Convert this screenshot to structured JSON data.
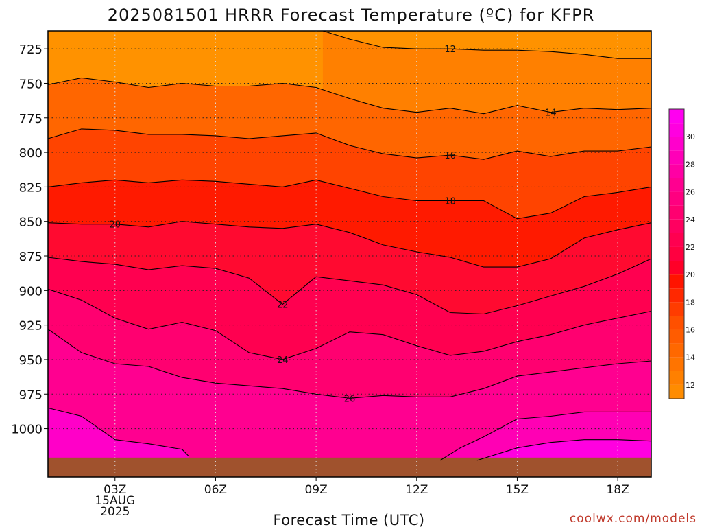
{
  "chart_data": {
    "type": "heatmap",
    "title": "2025081501 HRRR Forecast Temperature (ºC) for KFPR",
    "xlabel": "Forecast Time (UTC)",
    "ylabel": "",
    "credit": "coolwx.com/models",
    "x_ticks": [
      {
        "hour": 3,
        "lines": [
          "03Z",
          "15AUG",
          "2025"
        ]
      },
      {
        "hour": 6,
        "lines": [
          "06Z"
        ]
      },
      {
        "hour": 9,
        "lines": [
          "09Z"
        ]
      },
      {
        "hour": 12,
        "lines": [
          "12Z"
        ]
      },
      {
        "hour": 15,
        "lines": [
          "15Z"
        ]
      },
      {
        "hour": 18,
        "lines": [
          "18Z"
        ]
      }
    ],
    "xlim": [
      1,
      19
    ],
    "y_ticks": [
      725,
      750,
      775,
      800,
      825,
      850,
      875,
      900,
      925,
      950,
      975,
      1000
    ],
    "ylim": [
      1035,
      712
    ],
    "ground_pressure": 1021,
    "contours": [
      {
        "level": 12,
        "label_at": 13,
        "pts": [
          [
            9.2,
            712
          ],
          [
            10,
            718
          ],
          [
            11,
            724
          ],
          [
            12,
            725
          ],
          [
            13,
            725
          ],
          [
            14,
            726
          ],
          [
            15,
            726
          ],
          [
            16,
            727
          ],
          [
            17,
            729
          ],
          [
            18,
            732
          ],
          [
            19,
            732
          ]
        ]
      },
      {
        "level": 14,
        "label_at": 16,
        "pts": [
          [
            1,
            751
          ],
          [
            2,
            746
          ],
          [
            3,
            749
          ],
          [
            4,
            753
          ],
          [
            5,
            750
          ],
          [
            6,
            752
          ],
          [
            7,
            752
          ],
          [
            8,
            750
          ],
          [
            9,
            753
          ],
          [
            10,
            761
          ],
          [
            11,
            768
          ],
          [
            12,
            771
          ],
          [
            13,
            768
          ],
          [
            14,
            772
          ],
          [
            15,
            766
          ],
          [
            16,
            771
          ],
          [
            17,
            768
          ],
          [
            18,
            769
          ],
          [
            19,
            768
          ]
        ]
      },
      {
        "level": 16,
        "label_at": 13,
        "pts": [
          [
            1,
            790
          ],
          [
            2,
            783
          ],
          [
            3,
            784
          ],
          [
            4,
            787
          ],
          [
            5,
            787
          ],
          [
            6,
            788
          ],
          [
            7,
            790
          ],
          [
            8,
            788
          ],
          [
            9,
            786
          ],
          [
            10,
            795
          ],
          [
            11,
            801
          ],
          [
            12,
            804
          ],
          [
            13,
            802
          ],
          [
            14,
            805
          ],
          [
            15,
            799
          ],
          [
            16,
            803
          ],
          [
            17,
            799
          ],
          [
            18,
            799
          ],
          [
            19,
            796
          ]
        ]
      },
      {
        "level": 18,
        "label_at": 13,
        "pts": [
          [
            1,
            825
          ],
          [
            2,
            822
          ],
          [
            3,
            820
          ],
          [
            4,
            822
          ],
          [
            5,
            820
          ],
          [
            6,
            821
          ],
          [
            7,
            823
          ],
          [
            8,
            825
          ],
          [
            9,
            820
          ],
          [
            10,
            826
          ],
          [
            11,
            832
          ],
          [
            12,
            835
          ],
          [
            13,
            835
          ],
          [
            14,
            835
          ],
          [
            15,
            848
          ],
          [
            16,
            844
          ],
          [
            17,
            832
          ],
          [
            18,
            829
          ],
          [
            19,
            825
          ]
        ]
      },
      {
        "level": 20,
        "label_at": 3,
        "pts": [
          [
            1,
            851
          ],
          [
            2,
            852
          ],
          [
            3,
            852
          ],
          [
            4,
            854
          ],
          [
            5,
            850
          ],
          [
            6,
            852
          ],
          [
            7,
            854
          ],
          [
            8,
            855
          ],
          [
            9,
            852
          ],
          [
            10,
            858
          ],
          [
            11,
            867
          ],
          [
            12,
            872
          ],
          [
            13,
            876
          ],
          [
            14,
            883
          ],
          [
            15,
            883
          ],
          [
            16,
            877
          ],
          [
            17,
            862
          ],
          [
            18,
            856
          ],
          [
            19,
            851
          ]
        ]
      },
      {
        "level": 22,
        "label_at": 8,
        "pts": [
          [
            1,
            876
          ],
          [
            2,
            879
          ],
          [
            3,
            881
          ],
          [
            4,
            885
          ],
          [
            5,
            882
          ],
          [
            6,
            884
          ],
          [
            7,
            891
          ],
          [
            8,
            910
          ],
          [
            9,
            890
          ],
          [
            10,
            893
          ],
          [
            11,
            896
          ],
          [
            12,
            903
          ],
          [
            13,
            916
          ],
          [
            14,
            917
          ],
          [
            15,
            911
          ],
          [
            16,
            904
          ],
          [
            17,
            897
          ],
          [
            18,
            888
          ],
          [
            19,
            877
          ]
        ]
      },
      {
        "level": 24,
        "label_at": 8,
        "pts": [
          [
            1,
            899
          ],
          [
            2,
            907
          ],
          [
            3,
            920
          ],
          [
            4,
            928
          ],
          [
            5,
            923
          ],
          [
            6,
            929
          ],
          [
            7,
            945
          ],
          [
            8,
            950
          ],
          [
            9,
            942
          ],
          [
            10,
            930
          ],
          [
            11,
            932
          ],
          [
            12,
            940
          ],
          [
            13,
            947
          ],
          [
            14,
            944
          ],
          [
            15,
            937
          ],
          [
            16,
            932
          ],
          [
            17,
            925
          ],
          [
            18,
            920
          ],
          [
            19,
            915
          ]
        ]
      },
      {
        "level": 26,
        "label_at": 10,
        "pts": [
          [
            1,
            928
          ],
          [
            2,
            945
          ],
          [
            3,
            953
          ],
          [
            4,
            955
          ],
          [
            5,
            963
          ],
          [
            6,
            967
          ],
          [
            7,
            969
          ],
          [
            8,
            971
          ],
          [
            9,
            975
          ],
          [
            10,
            978
          ],
          [
            11,
            976
          ],
          [
            12,
            977
          ],
          [
            13,
            977
          ],
          [
            14,
            971
          ],
          [
            15,
            962
          ],
          [
            16,
            959
          ],
          [
            17,
            956
          ],
          [
            18,
            953
          ],
          [
            19,
            951
          ]
        ]
      },
      {
        "level": 28,
        "label_at": null,
        "pts": [
          [
            1,
            985
          ],
          [
            2,
            991
          ],
          [
            3,
            1008
          ],
          [
            4,
            1011
          ],
          [
            5,
            1015
          ],
          [
            5.2,
            1020
          ]
        ]
      },
      {
        "level": 28,
        "label_at": null,
        "pts": [
          [
            12.7,
            1023
          ],
          [
            13.3,
            1014
          ],
          [
            14,
            1006
          ],
          [
            15,
            993
          ],
          [
            16,
            991
          ],
          [
            17,
            988
          ],
          [
            18,
            988
          ],
          [
            19,
            988
          ]
        ]
      },
      {
        "level": 30,
        "label_at": null,
        "pts": [
          [
            13.8,
            1023
          ],
          [
            15,
            1014
          ],
          [
            16,
            1010
          ],
          [
            17,
            1008
          ],
          [
            18,
            1008
          ],
          [
            19,
            1009
          ]
        ]
      }
    ],
    "colorbar": {
      "levels": [
        11,
        12,
        13,
        14,
        15,
        16,
        17,
        18,
        19,
        20,
        21,
        22,
        23,
        24,
        25,
        26,
        27,
        28,
        29,
        30,
        31,
        32
      ],
      "tick_labels": [
        12,
        14,
        16,
        18,
        20,
        22,
        24,
        26,
        28,
        30
      ],
      "colors": [
        "#ff8c00",
        "#ff8000",
        "#ff7400",
        "#ff6800",
        "#ff5c00",
        "#ff5000",
        "#ff3c00",
        "#ff2800",
        "#ff1400",
        "#ff0028",
        "#ff0040",
        "#ff0050",
        "#ff0060",
        "#ff0070",
        "#ff0080",
        "#ff0090",
        "#ff00a4",
        "#ff00b8",
        "#ff00cc",
        "#ff00e0",
        "#ff00f0"
      ]
    },
    "fill_bands": [
      {
        "from": null,
        "to": 0,
        "color": "#ff9200"
      },
      {
        "from": 0,
        "to": 1,
        "color": "#ff8000"
      },
      {
        "from": 1,
        "to": 2,
        "color": "#ff6000"
      },
      {
        "from": 2,
        "to": 3,
        "color": "#ff4000"
      },
      {
        "from": 3,
        "to": 4,
        "color": "#ff1800"
      },
      {
        "from": 4,
        "to": 5,
        "color": "#ff0c3c"
      },
      {
        "from": 5,
        "to": 6,
        "color": "#ff005c"
      },
      {
        "from": 6,
        "to": 7,
        "color": "#ff007c"
      },
      {
        "from": 7,
        "to": 9,
        "color": "#ff009c"
      },
      {
        "from": 8,
        "to": 10,
        "color": "#ff00c8"
      },
      {
        "from": 10,
        "to": null,
        "color": "#ff00e8"
      }
    ],
    "grid": true,
    "ground_color": "#a0522d"
  }
}
